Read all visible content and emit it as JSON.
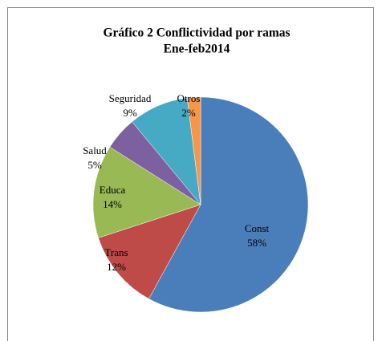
{
  "chart_data": {
    "type": "pie",
    "title": "Gráfico 2 Conflictividad por ramas",
    "subtitle": "Ene-feb2014",
    "categories": [
      "Const",
      "Trans",
      "Educa",
      "Salud",
      "Seguridad",
      "Otros"
    ],
    "values": [
      58,
      12,
      14,
      5,
      9,
      2
    ],
    "value_labels": [
      "58%",
      "12%",
      "14%",
      "5%",
      "9%",
      "2%"
    ],
    "colors": [
      "#4a7ebb",
      "#be4b48",
      "#98b954",
      "#7d60a0",
      "#46aac5",
      "#f79646"
    ]
  }
}
